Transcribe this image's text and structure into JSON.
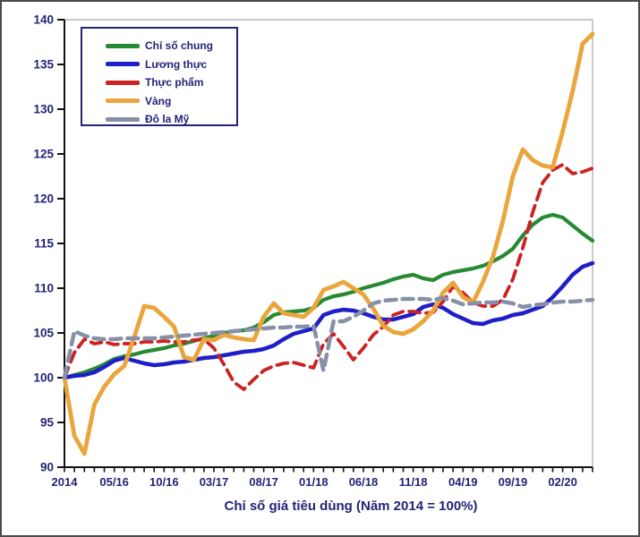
{
  "figure": {
    "title_bottom": "Chỉ số giá tiêu dùng (Năm 2014 = 100%)"
  },
  "colors": {
    "text_navy": "#232378",
    "axis_black": "#111111",
    "plot_box_gray": "#a8a8a8",
    "legend_border": "#232378"
  },
  "chart_data": {
    "type": "line",
    "title": "Chỉ số giá tiêu dùng (Năm 2014 = 100%)",
    "xlabel": "",
    "ylabel": "",
    "ylim": [
      90,
      140
    ],
    "y_ticks": [
      90,
      95,
      100,
      105,
      110,
      115,
      120,
      125,
      130,
      135,
      140
    ],
    "grid": false,
    "legend_position": "top-left",
    "x": [
      "2014",
      "01/16",
      "02/16",
      "03/16",
      "04/16",
      "05/16",
      "06/16",
      "07/16",
      "08/16",
      "09/16",
      "10/16",
      "11/16",
      "12/16",
      "01/17",
      "02/17",
      "03/17",
      "04/17",
      "05/17",
      "06/17",
      "07/17",
      "08/17",
      "09/17",
      "10/17",
      "11/17",
      "12/17",
      "01/18",
      "02/18",
      "03/18",
      "04/18",
      "05/18",
      "06/18",
      "07/18",
      "08/18",
      "09/18",
      "10/18",
      "11/18",
      "12/18",
      "01/19",
      "02/19",
      "03/19",
      "04/19",
      "05/19",
      "06/19",
      "07/19",
      "08/19",
      "09/19",
      "10/19",
      "11/19",
      "12/19",
      "01/20",
      "02/20",
      "03/20",
      "04/20",
      "05/20"
    ],
    "x_tick_labels": [
      {
        "index": 0,
        "label": "2014"
      },
      {
        "index": 5,
        "label": "05/16"
      },
      {
        "index": 10,
        "label": "10/16"
      },
      {
        "index": 15,
        "label": "03/17"
      },
      {
        "index": 20,
        "label": "08/17"
      },
      {
        "index": 25,
        "label": "01/18"
      },
      {
        "index": 30,
        "label": "06/18"
      },
      {
        "index": 35,
        "label": "11/18"
      },
      {
        "index": 40,
        "label": "04/19"
      },
      {
        "index": 45,
        "label": "09/19"
      },
      {
        "index": 50,
        "label": "02/20"
      }
    ],
    "series": [
      {
        "name": "Chỉ số chung",
        "color": "#278a33",
        "dash": "solid",
        "stroke_width": 4.2,
        "values": [
          100,
          100.3,
          100.6,
          101.0,
          101.5,
          102.1,
          102.4,
          102.6,
          102.9,
          103.1,
          103.3,
          103.6,
          103.8,
          104.1,
          104.4,
          104.7,
          105.0,
          105.2,
          105.3,
          105.6,
          106.2,
          107.0,
          107.3,
          107.4,
          107.5,
          107.8,
          108.7,
          109.1,
          109.3,
          109.6,
          110.0,
          110.3,
          110.6,
          111.0,
          111.3,
          111.5,
          111.1,
          110.9,
          111.5,
          111.8,
          112.0,
          112.2,
          112.5,
          113.0,
          113.6,
          114.4,
          115.9,
          117.1,
          117.9,
          118.2,
          117.9,
          117.0,
          116.1,
          115.3
        ]
      },
      {
        "name": "Lương thực",
        "color": "#1f1fc8",
        "dash": "solid",
        "stroke_width": 4.5,
        "values": [
          100,
          100.2,
          100.3,
          100.6,
          101.2,
          101.9,
          102.2,
          101.9,
          101.6,
          101.4,
          101.5,
          101.7,
          101.8,
          102.0,
          102.2,
          102.3,
          102.5,
          102.7,
          102.9,
          103.0,
          103.2,
          103.6,
          104.3,
          104.9,
          105.2,
          105.5,
          107.0,
          107.4,
          107.6,
          107.5,
          107.2,
          106.8,
          106.5,
          106.5,
          106.8,
          107.1,
          107.9,
          108.2,
          107.8,
          107.1,
          106.6,
          106.1,
          106.0,
          106.4,
          106.6,
          107.0,
          107.2,
          107.6,
          108.0,
          109.0,
          110.2,
          111.5,
          112.4,
          112.8
        ]
      },
      {
        "name": "Thực phẩm",
        "color": "#cc2222",
        "dash": "dashed",
        "stroke_width": 3.8,
        "values": [
          100,
          102.8,
          104.3,
          103.8,
          104.0,
          103.7,
          103.8,
          103.8,
          104.0,
          104.0,
          104.1,
          104.0,
          104.0,
          104.2,
          104.3,
          103.3,
          101.5,
          99.5,
          98.7,
          99.8,
          100.8,
          101.3,
          101.6,
          101.7,
          101.4,
          101.1,
          103.8,
          104.9,
          103.5,
          102.0,
          103.3,
          104.8,
          105.7,
          107.0,
          107.4,
          107.4,
          107.2,
          107.3,
          108.5,
          110.2,
          109.5,
          108.4,
          108.0,
          108.0,
          108.7,
          111.0,
          114.5,
          118.5,
          121.8,
          123.2,
          123.8,
          122.8,
          123.0,
          123.4
        ]
      },
      {
        "name": "Vàng",
        "color": "#eaa53c",
        "dash": "solid",
        "stroke_width": 4.8,
        "values": [
          100,
          93.5,
          91.5,
          97.0,
          99.0,
          100.4,
          101.3,
          104.5,
          108.0,
          107.8,
          106.8,
          105.7,
          102.3,
          102.0,
          104.3,
          104.2,
          104.8,
          104.5,
          104.3,
          104.2,
          106.8,
          108.3,
          107.2,
          107.0,
          106.8,
          107.8,
          109.8,
          110.2,
          110.7,
          110.0,
          109.3,
          107.7,
          105.8,
          105.1,
          104.9,
          105.4,
          106.3,
          107.5,
          109.5,
          110.6,
          109.0,
          108.4,
          110.7,
          113.5,
          117.5,
          122.5,
          125.5,
          124.3,
          123.7,
          123.5,
          127.5,
          132.0,
          137.3,
          138.4
        ]
      },
      {
        "name": "Đô la Mỹ",
        "color": "#8890a8",
        "dash": "dashed",
        "stroke_width": 4.5,
        "values": [
          100,
          105.2,
          104.7,
          104.4,
          104.3,
          104.3,
          104.4,
          104.4,
          104.4,
          104.4,
          104.5,
          104.6,
          104.7,
          104.8,
          104.9,
          105.0,
          105.1,
          105.2,
          105.3,
          105.4,
          105.5,
          105.6,
          105.6,
          105.7,
          105.7,
          105.8,
          100.8,
          106.3,
          106.3,
          106.8,
          107.5,
          108.3,
          108.6,
          108.7,
          108.8,
          108.8,
          108.8,
          108.7,
          108.9,
          108.6,
          108.2,
          108.3,
          108.4,
          108.4,
          108.5,
          108.3,
          107.9,
          108.1,
          108.2,
          108.4,
          108.5,
          108.5,
          108.6,
          108.7
        ]
      }
    ]
  }
}
